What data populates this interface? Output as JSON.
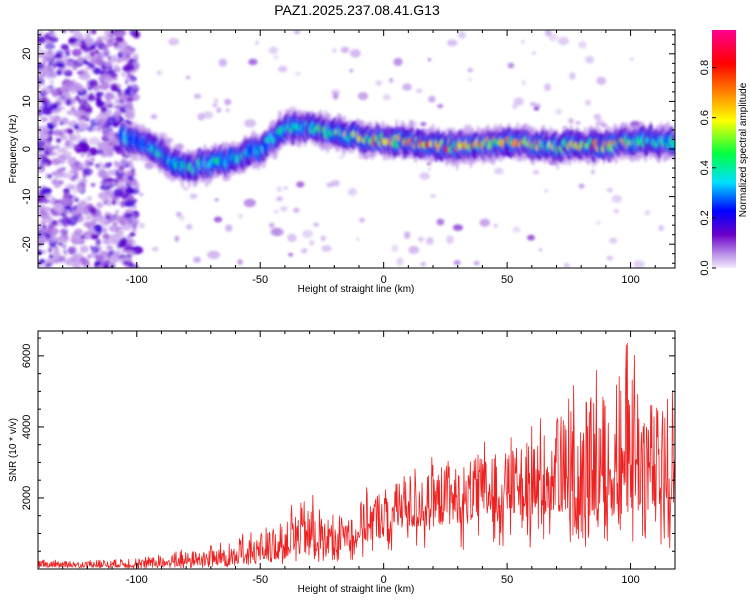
{
  "title": "PAZ1.2025.237.08.41.G13",
  "chart_data": [
    {
      "type": "heatmap",
      "xlabel": "Height of straight line (km)",
      "ylabel": "Frequency (Hz)",
      "xlim": [
        -140,
        118
      ],
      "ylim": [
        -25,
        25
      ],
      "x_ticks": [
        -100,
        -50,
        0,
        50,
        100
      ],
      "y_ticks": [
        -20,
        -10,
        0,
        10,
        20
      ],
      "colorbar": {
        "label": "Normalized spectral amplitude",
        "range": [
          0.0,
          0.95
        ],
        "ticks": [
          0.0,
          0.2,
          0.4,
          0.6,
          0.8
        ],
        "colormap": [
          "#f3ecfb",
          "#6a00c8",
          "#0000ff",
          "#00e0ff",
          "#00ff40",
          "#ffff00",
          "#ff8000",
          "#ff0000",
          "#ff0090"
        ]
      },
      "ridge": {
        "x": [
          -105,
          -95,
          -85,
          -78,
          -70,
          -60,
          -50,
          -40,
          -33,
          -25,
          -15,
          -5,
          0,
          10,
          20,
          30,
          40,
          50,
          60,
          70,
          80,
          90,
          100,
          110,
          118
        ],
        "y": [
          2.5,
          0.5,
          -3,
          -4,
          -3,
          -2,
          0,
          4,
          5,
          4,
          3,
          2,
          2,
          1.5,
          1,
          0.5,
          1,
          1.5,
          1,
          0.5,
          1,
          0.5,
          1.5,
          1.5,
          1
        ],
        "peak_amplitude": [
          0.35,
          0.4,
          0.45,
          0.5,
          0.45,
          0.4,
          0.4,
          0.45,
          0.45,
          0.5,
          0.6,
          0.7,
          0.75,
          0.8,
          0.85,
          0.8,
          0.75,
          0.7,
          0.75,
          0.6,
          0.7,
          0.8,
          0.6,
          0.5,
          0.45
        ]
      },
      "grid": false
    },
    {
      "type": "line",
      "xlabel": "Height of straight line (km)",
      "ylabel": "SNR (10 * v/v)",
      "xlim": [
        -140,
        118
      ],
      "ylim": [
        0,
        6700
      ],
      "x_ticks": [
        -100,
        -50,
        0,
        50,
        100
      ],
      "y_ticks": [
        2000,
        4000,
        6000
      ],
      "series": [
        {
          "color": "#ee2020",
          "x": [
            -140,
            -120,
            -100,
            -90,
            -80,
            -70,
            -60,
            -50,
            -40,
            -35,
            -30,
            -25,
            -20,
            -10,
            0,
            10,
            20,
            30,
            40,
            50,
            60,
            70,
            80,
            90,
            100,
            110,
            118
          ],
          "envelope_low": [
            50,
            50,
            50,
            60,
            80,
            100,
            150,
            200,
            300,
            400,
            400,
            400,
            500,
            700,
            900,
            1100,
            1200,
            1300,
            1400,
            1500,
            1500,
            1600,
            1500,
            1500,
            1600,
            1500,
            1500
          ],
          "envelope_high": [
            250,
            250,
            300,
            400,
            550,
            700,
            900,
            1100,
            1400,
            2000,
            2400,
            1500,
            1500,
            2000,
            2600,
            2800,
            3000,
            3200,
            3500,
            3600,
            4000,
            4600,
            5300,
            5600,
            6600,
            5200,
            4800
          ]
        }
      ],
      "grid": false
    }
  ]
}
